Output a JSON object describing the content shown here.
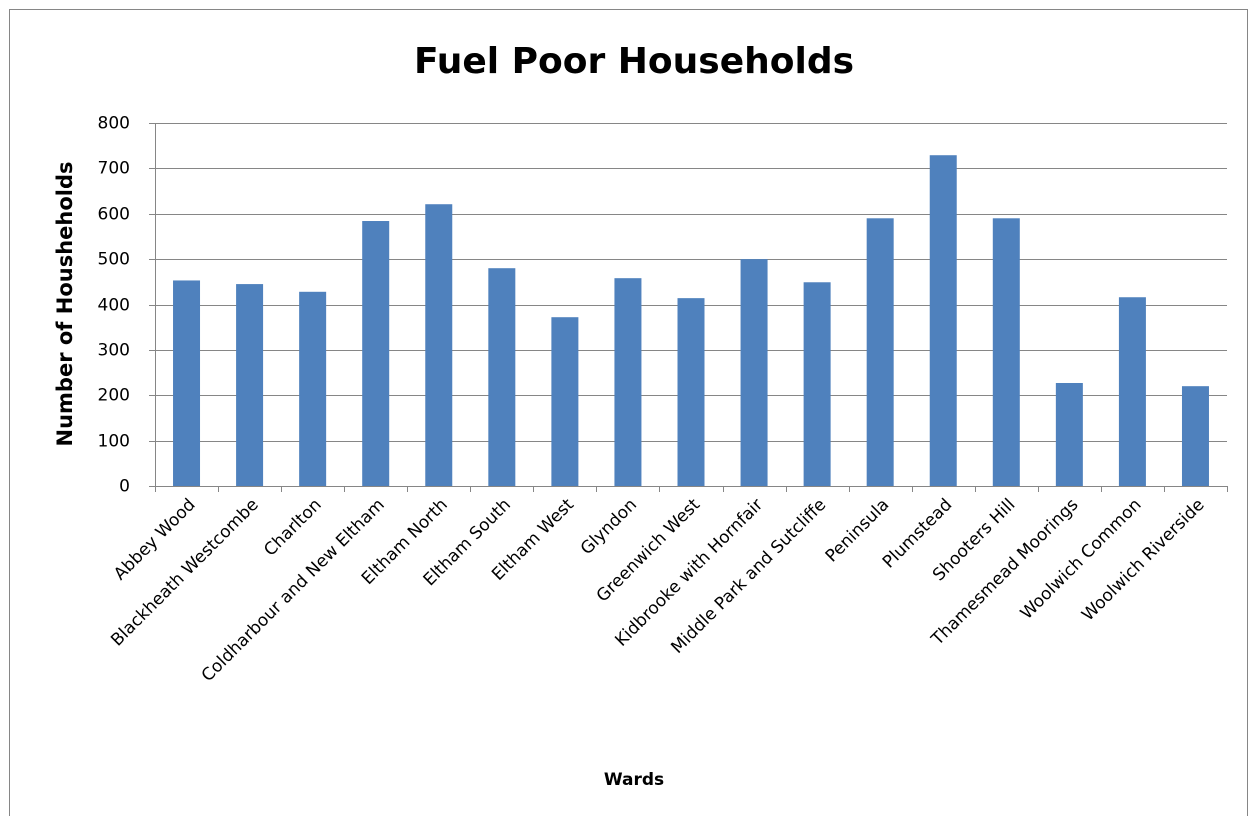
{
  "chart_data": {
    "type": "bar",
    "title": "Fuel Poor Households",
    "x_label": "Wards",
    "y_label": "Number of Housheholds",
    "categories": [
      "Abbey Wood",
      "Blackheath Westcombe",
      "Charlton",
      "Coldharbour and New Eltham",
      "Eltham North",
      "Eltham South",
      "Eltham West",
      "Glyndon",
      "Greenwich West",
      "Kidbrooke with Hornfair",
      "Middle Park and Sutcliffe",
      "Peninsula",
      "Plumstead",
      "Shooters Hill",
      "Thamesmead Moorings",
      "Woolwich Common",
      "Woolwich Riverside"
    ],
    "values": [
      453,
      445,
      428,
      584,
      621,
      480,
      372,
      458,
      414,
      500,
      449,
      590,
      729,
      590,
      227,
      416,
      220
    ],
    "color": "#4f81bd",
    "ylim": [
      0,
      800
    ],
    "yticks": [
      0,
      100,
      200,
      300,
      400,
      500,
      600,
      700,
      800
    ],
    "grid": true
  }
}
